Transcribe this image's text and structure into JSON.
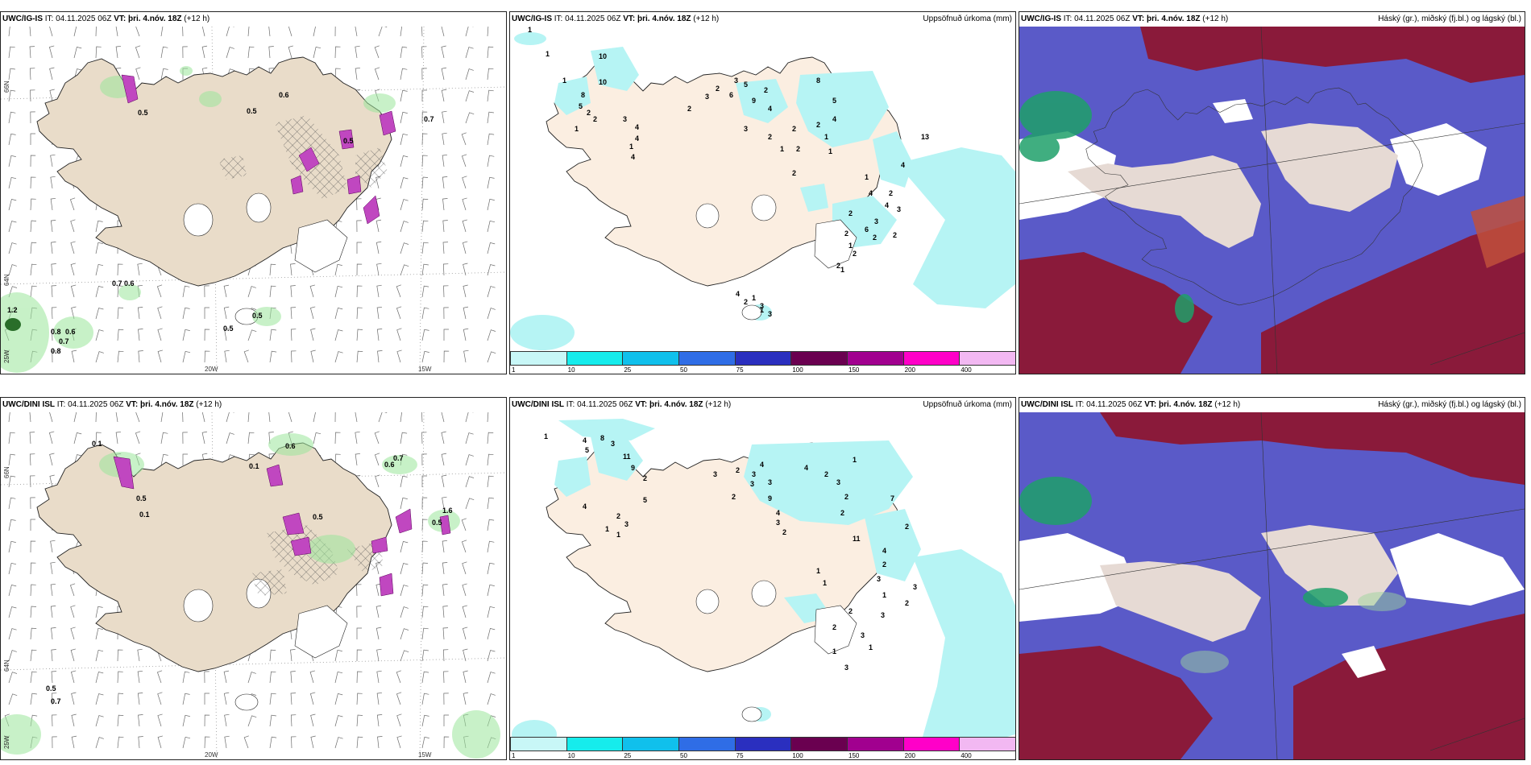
{
  "panels": {
    "p1": {
      "model": "UWC/IG-IS",
      "it_label": "IT:",
      "it_value": "04.11.2025 06Z",
      "vt_label": "VT:",
      "vt_value": "þri. 4.nóv. 18Z",
      "lead": "(+12 h)",
      "right": ""
    },
    "p2": {
      "model": "UWC/IG-IS",
      "it_label": "IT:",
      "it_value": "04.11.2025 06Z",
      "vt_label": "VT:",
      "vt_value": "þri. 4.nóv. 18Z",
      "lead": "(+12 h)",
      "right": "Uppsöfnuð úrkoma (mm)"
    },
    "p3": {
      "model": "UWC/IG-IS",
      "it_label": "IT:",
      "it_value": "04.11.2025 06Z",
      "vt_label": "VT:",
      "vt_value": "þri. 4.nóv. 18Z",
      "lead": "(+12 h)",
      "right": "Háský (gr.), miðský (fj.bl.) og lágský (bl.)"
    },
    "p4": {
      "model": "UWC/DINI ISL",
      "it_label": "IT:",
      "it_value": "04.11.2025 06Z",
      "vt_label": "VT:",
      "vt_value": "þri. 4.nóv. 18Z",
      "lead": "(+12 h)",
      "right": ""
    },
    "p5": {
      "model": "UWC/DINI ISL",
      "it_label": "IT:",
      "it_value": "04.11.2025 06Z",
      "vt_label": "VT:",
      "vt_value": "þri. 4.nóv. 18Z",
      "lead": "(+12 h)",
      "right": "Uppsöfnuð úrkoma (mm)"
    },
    "p6": {
      "model": "UWC/DINI ISL",
      "it_label": "IT:",
      "it_value": "04.11.2025 06Z",
      "vt_label": "VT:",
      "vt_value": "þri. 4.nóv. 18Z",
      "lead": "(+12 h)",
      "right": "Háský (gr.), miðský (fj.bl.) og lágský (bl.)"
    }
  },
  "axes": {
    "lon1": "20W",
    "lon2": "15W",
    "lat1": "66N",
    "lat2": "64N",
    "lat3": "25W"
  },
  "colorbar": {
    "ticks": [
      "1",
      "10",
      "25",
      "50",
      "75",
      "100",
      "150",
      "200",
      "400"
    ],
    "colors": [
      "#c8f7f7",
      "#16ecec",
      "#10c0ec",
      "#2f6de6",
      "#2a2fbf",
      "#6a0050",
      "#a1008f",
      "#ff00c8",
      "#f2b8f2"
    ]
  },
  "labels": {
    "p1": [
      "0.5",
      "0.6",
      "0.5",
      "0.5",
      "0.7",
      "0.7",
      "0.6",
      "0.5",
      "0.5",
      "0.8",
      "0.6",
      "0.7",
      "0.8",
      "1.2"
    ],
    "p2": [
      "1",
      "1",
      "10",
      "10",
      "1",
      "8",
      "5",
      "2",
      "1",
      "2",
      "3",
      "4",
      "4",
      "1",
      "4",
      "2",
      "3",
      "2",
      "6",
      "3",
      "5",
      "9",
      "2",
      "4",
      "3",
      "8",
      "5",
      "2",
      "1",
      "2",
      "2",
      "2",
      "4",
      "1",
      "1",
      "2",
      "13",
      "4",
      "1",
      "4",
      "4",
      "3",
      "2",
      "6",
      "2",
      "2",
      "2",
      "2",
      "1",
      "1",
      "3",
      "2",
      "2",
      "1",
      "4",
      "1",
      "3",
      "2",
      "3"
    ],
    "p4": [
      "0.1",
      "0.6",
      "0.7",
      "0.6",
      "0.5",
      "0.5",
      "0.1",
      "0.5",
      "1.6",
      "0.5",
      "0.7",
      "0.1"
    ],
    "p5": [
      "1",
      "4",
      "5",
      "8",
      "3",
      "11",
      "9",
      "2",
      "5",
      "2",
      "3",
      "1",
      "1",
      "4",
      "3",
      "2",
      "3",
      "4",
      "3",
      "3",
      "2",
      "9",
      "4",
      "3",
      "2",
      "4",
      "2",
      "3",
      "1",
      "2",
      "2",
      "11",
      "7",
      "4",
      "2",
      "3",
      "1",
      "2",
      "3",
      "2",
      "3",
      "2",
      "2",
      "3",
      "1",
      "1",
      "1",
      "1",
      "3"
    ]
  }
}
